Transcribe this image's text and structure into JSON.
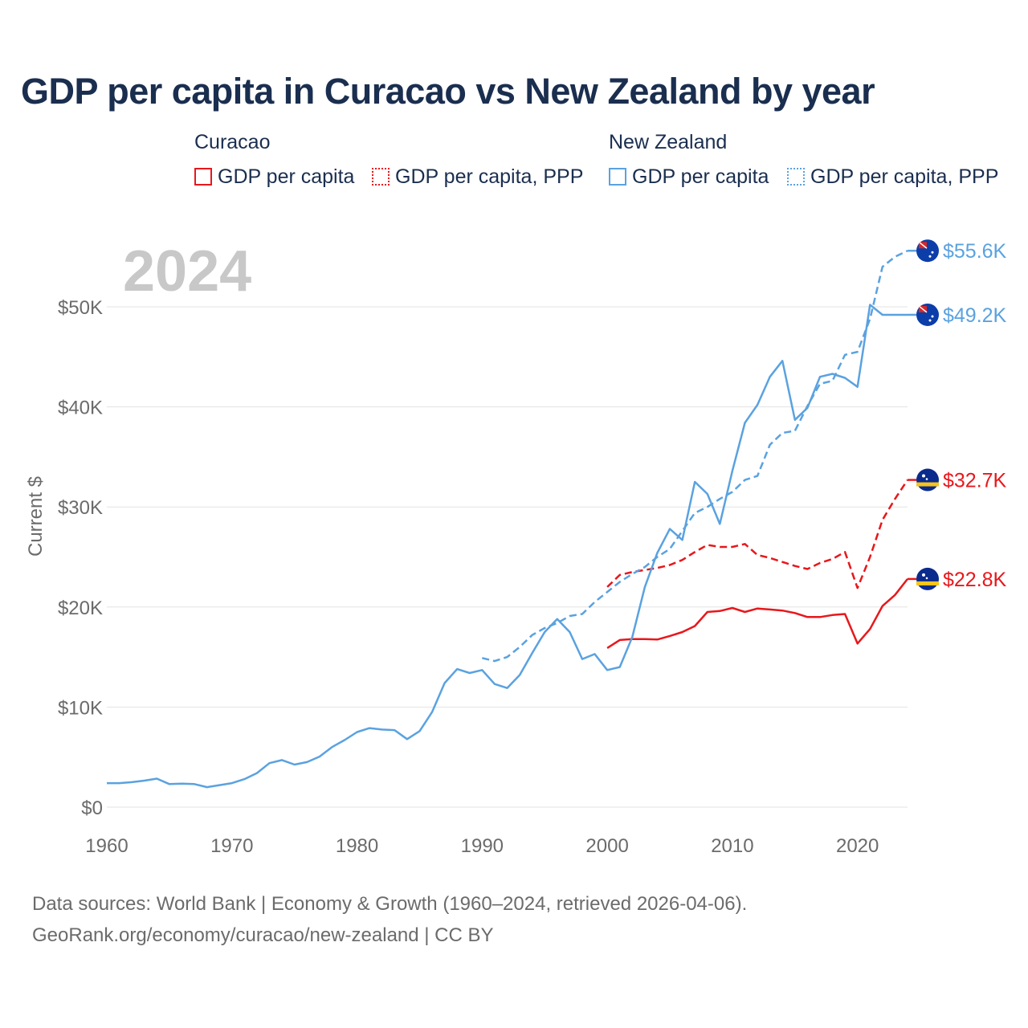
{
  "title": "GDP per capita in Curacao vs New Zealand by year",
  "legend": {
    "groups": [
      {
        "name": "Curacao",
        "items": [
          "GDP per capita",
          "GDP per capita, PPP"
        ]
      },
      {
        "name": "New Zealand",
        "items": [
          "GDP per capita",
          "GDP per capita, PPP"
        ]
      }
    ]
  },
  "colors": {
    "curacao": "#e8171b",
    "new_zealand": "#5aa2e0",
    "grid": "#e3e3e3",
    "axis_text": "#6b6b6b",
    "year_watermark": "#c8c8c8"
  },
  "source": {
    "line1": "Data sources: World Bank | Economy & Growth (1960–2024, retrieved 2026-04-06).",
    "line2": "GeoRank.org/economy/curacao/new-zealand | CC BY"
  },
  "chart_data": {
    "type": "line",
    "title": "GDP per capita in Curacao vs New Zealand by year",
    "ylabel": "Current $",
    "xlabel": "",
    "year_label": "2024",
    "xlim": [
      1960,
      2024
    ],
    "ylim": [
      0,
      50000
    ],
    "x_ticks": [
      1960,
      1970,
      1980,
      1990,
      2000,
      2010,
      2020
    ],
    "y_ticks": [
      0,
      10000,
      20000,
      30000,
      40000,
      50000
    ],
    "y_tick_labels": [
      "$0",
      "$10K",
      "$20K",
      "$30K",
      "$40K",
      "$50K"
    ],
    "series": [
      {
        "name": "GDP per capita",
        "country": "Curacao",
        "flag": "curacao-flag-icon",
        "style": "solid",
        "end_label": "$22.8K",
        "x": [
          2000,
          2001,
          2002,
          2003,
          2004,
          2005,
          2006,
          2007,
          2008,
          2009,
          2010,
          2011,
          2012,
          2013,
          2014,
          2015,
          2016,
          2017,
          2018,
          2019,
          2020,
          2021,
          2022,
          2023,
          2024
        ],
        "values": [
          15900,
          16700,
          16800,
          16800,
          16750,
          17100,
          17500,
          18100,
          19500,
          19600,
          19900,
          19500,
          19850,
          19750,
          19650,
          19400,
          19000,
          19000,
          19200,
          19300,
          16350,
          17800,
          20100,
          21200,
          22800
        ]
      },
      {
        "name": "GDP per capita, PPP",
        "country": "Curacao",
        "flag": "curacao-flag-icon",
        "style": "dashed",
        "end_label": "$32.7K",
        "x": [
          2000,
          2001,
          2002,
          2003,
          2004,
          2005,
          2006,
          2007,
          2008,
          2009,
          2010,
          2011,
          2012,
          2013,
          2014,
          2015,
          2016,
          2017,
          2018,
          2019,
          2020,
          2021,
          2022,
          2023,
          2024
        ],
        "values": [
          22000,
          23200,
          23500,
          23700,
          23900,
          24200,
          24700,
          25500,
          26200,
          26000,
          26000,
          26300,
          25200,
          24900,
          24500,
          24100,
          23800,
          24400,
          24800,
          25500,
          21900,
          25000,
          28700,
          30800,
          32700
        ]
      },
      {
        "name": "GDP per capita",
        "country": "New Zealand",
        "flag": "new-zealand-flag-icon",
        "style": "solid",
        "end_label": "$49.2K",
        "x": [
          1960,
          1961,
          1962,
          1963,
          1964,
          1965,
          1966,
          1967,
          1968,
          1969,
          1970,
          1971,
          1972,
          1973,
          1974,
          1975,
          1976,
          1977,
          1978,
          1979,
          1980,
          1981,
          1982,
          1983,
          1984,
          1985,
          1986,
          1987,
          1988,
          1989,
          1990,
          1991,
          1992,
          1993,
          1994,
          1995,
          1996,
          1997,
          1998,
          1999,
          2000,
          2001,
          2002,
          2003,
          2004,
          2005,
          2006,
          2007,
          2008,
          2009,
          2010,
          2011,
          2012,
          2013,
          2014,
          2015,
          2016,
          2017,
          2018,
          2019,
          2020,
          2021,
          2022,
          2023,
          2024
        ],
        "values": [
          2400,
          2400,
          2500,
          2650,
          2850,
          2300,
          2350,
          2300,
          2000,
          2200,
          2400,
          2800,
          3400,
          4400,
          4700,
          4250,
          4500,
          5050,
          6000,
          6700,
          7500,
          7900,
          7750,
          7700,
          6800,
          7600,
          9500,
          12400,
          13800,
          13400,
          13700,
          12300,
          11900,
          13200,
          15400,
          17500,
          18800,
          17500,
          14800,
          15300,
          13700,
          14000,
          17000,
          22000,
          25400,
          27800,
          26700,
          32500,
          31300,
          28300,
          33600,
          38400,
          40200,
          43000,
          44600,
          38700,
          39900,
          43000,
          43300,
          42900,
          42000,
          50200,
          49200,
          49200,
          49200
        ]
      },
      {
        "name": "GDP per capita, PPP",
        "country": "New Zealand",
        "flag": "new-zealand-flag-icon",
        "style": "dashed",
        "end_label": "$55.6K",
        "x": [
          1990,
          1991,
          1992,
          1993,
          1994,
          1995,
          1996,
          1997,
          1998,
          1999,
          2000,
          2001,
          2002,
          2003,
          2004,
          2005,
          2006,
          2007,
          2008,
          2009,
          2010,
          2011,
          2012,
          2013,
          2014,
          2015,
          2016,
          2017,
          2018,
          2019,
          2020,
          2021,
          2022,
          2023,
          2024
        ],
        "values": [
          14900,
          14600,
          15000,
          16000,
          17200,
          17900,
          18400,
          19100,
          19300,
          20500,
          21500,
          22500,
          23300,
          24000,
          25000,
          25800,
          27600,
          29400,
          30000,
          30800,
          31500,
          32700,
          33100,
          36200,
          37400,
          37600,
          40100,
          42300,
          42600,
          45200,
          45500,
          48800,
          54000,
          55000,
          55600
        ]
      }
    ]
  }
}
